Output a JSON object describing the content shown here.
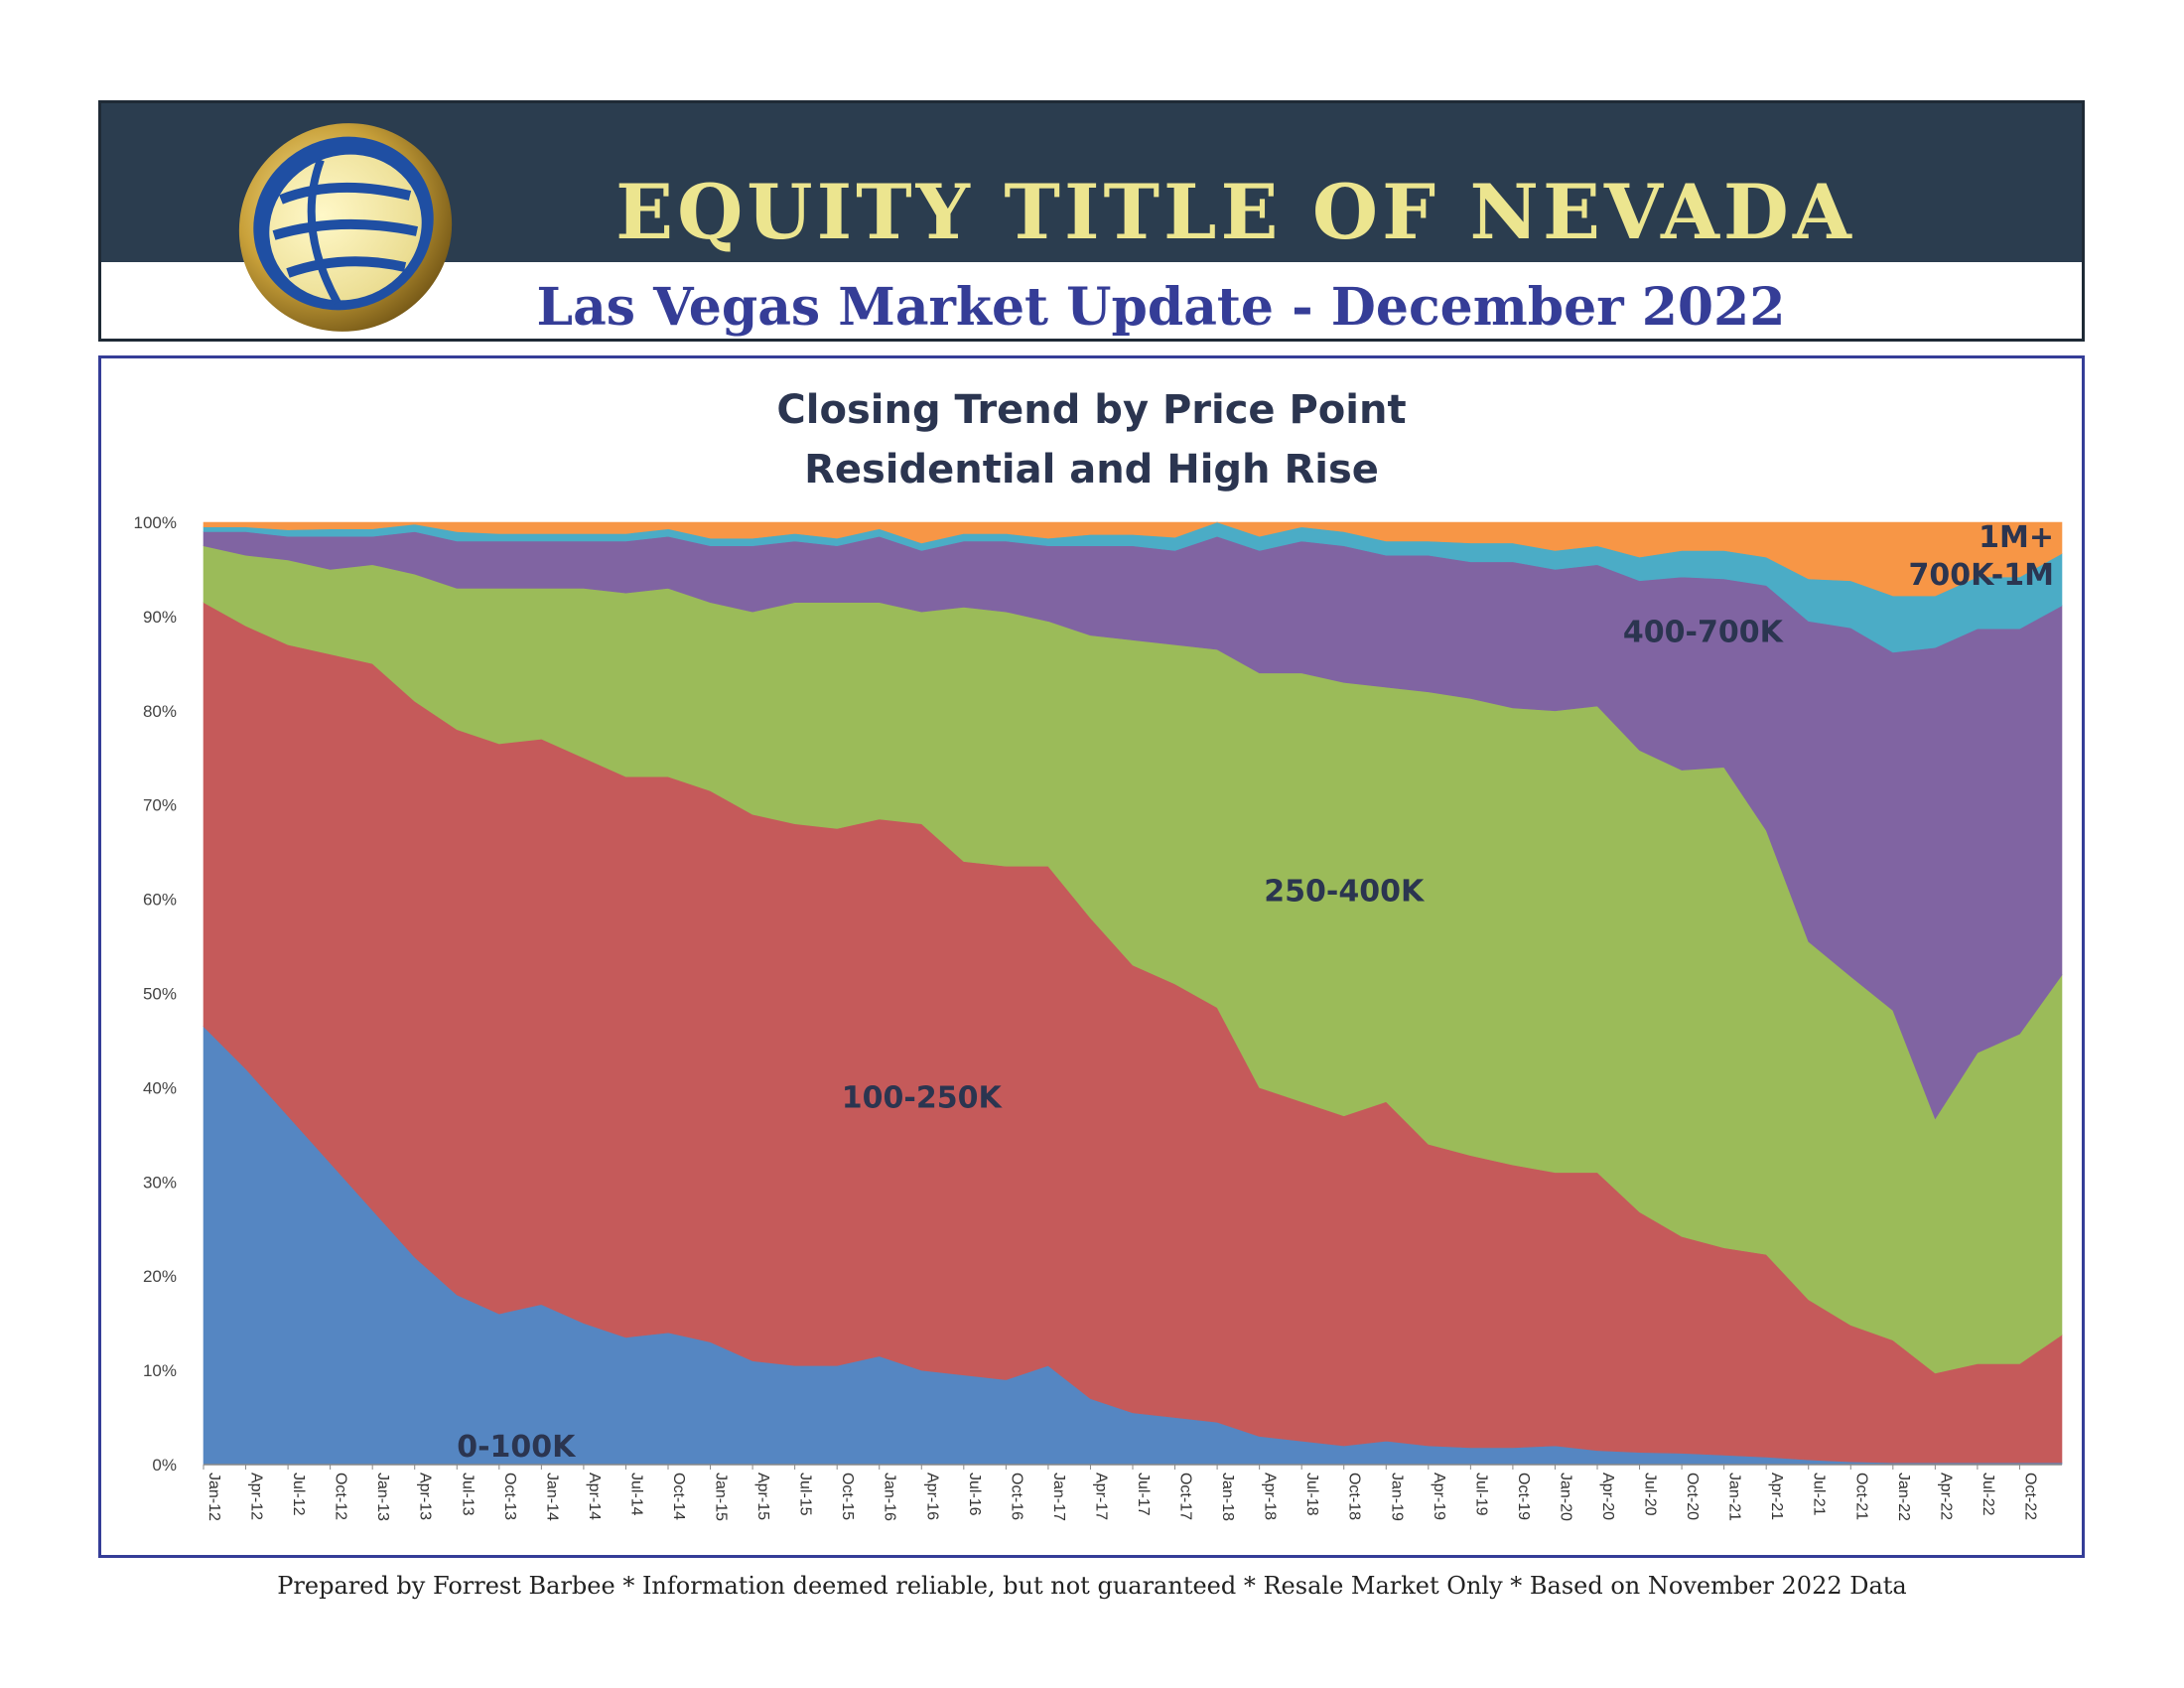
{
  "header": {
    "company_name": "EQUITY TITLE OF NEVADA",
    "report_title": "Las Vegas Market Update - December 2022",
    "logo_icon": "globe-logo-icon"
  },
  "footer": {
    "note": "Prepared by Forrest Barbee * Information deemed reliable, but not guaranteed * Resale Market Only * Based on November 2022 Data"
  },
  "chart_data": {
    "type": "area",
    "stacked": true,
    "percent": true,
    "title": "Closing Trend by Price Point",
    "subtitle": "Residential and High Rise",
    "xlabel": "",
    "ylabel": "",
    "ylim": [
      0,
      100
    ],
    "y_ticks": [
      "0%",
      "10%",
      "20%",
      "30%",
      "40%",
      "50%",
      "60%",
      "70%",
      "80%",
      "90%",
      "100%"
    ],
    "x": [
      "Jan-12",
      "Apr-12",
      "Jul-12",
      "Oct-12",
      "Jan-13",
      "Apr-13",
      "Jul-13",
      "Oct-13",
      "Jan-14",
      "Apr-14",
      "Jul-14",
      "Oct-14",
      "Jan-15",
      "Apr-15",
      "Jul-15",
      "Oct-15",
      "Jan-16",
      "Apr-16",
      "Jul-16",
      "Oct-16",
      "Jan-17",
      "Apr-17",
      "Jul-17",
      "Oct-17",
      "Jan-18",
      "Apr-18",
      "Jul-18",
      "Oct-18",
      "Jan-19",
      "Apr-19",
      "Jul-19",
      "Oct-19",
      "Jan-20",
      "Apr-20",
      "Jul-20",
      "Oct-20",
      "Jan-21",
      "Apr-21",
      "Jul-21",
      "Oct-21",
      "Jan-22",
      "Apr-22",
      "Jul-22",
      "Oct-22",
      "Dec-22"
    ],
    "x_ticks_shown": [
      "Jan-12",
      "Apr-12",
      "Jul-12",
      "Oct-12",
      "Jan-13",
      "Apr-13",
      "Jul-13",
      "Oct-13",
      "Jan-14",
      "Apr-14",
      "Jul-14",
      "Oct-14",
      "Jan-15",
      "Apr-15",
      "Jul-15",
      "Oct-15",
      "Jan-16",
      "Apr-16",
      "Jul-16",
      "Oct-16",
      "Jan-17",
      "Apr-17",
      "Jul-17",
      "Oct-17",
      "Jan-18",
      "Apr-18",
      "Jul-18",
      "Oct-18",
      "Jan-19",
      "Apr-19",
      "Jul-19",
      "Oct-19",
      "Jan-20",
      "Apr-20",
      "Jul-20",
      "Oct-20",
      "Jan-21",
      "Apr-21",
      "Jul-21",
      "Oct-21",
      "Jan-22",
      "Apr-22",
      "Jul-22",
      "Oct-22"
    ],
    "series": [
      {
        "name": "0-100K",
        "color": "#5586c2",
        "values": [
          46.5,
          42,
          37,
          32,
          27,
          22,
          18,
          16,
          17,
          15,
          13.5,
          14,
          13,
          11,
          10.5,
          10.5,
          11.5,
          10,
          9.5,
          9,
          10.5,
          7,
          5.5,
          5,
          4.5,
          3,
          2.5,
          2,
          2.5,
          2,
          1.8,
          1.8,
          2,
          1.5,
          1.3,
          1.2,
          1,
          0.8,
          0.5,
          0.3,
          0.2,
          0.2,
          0.2,
          0.2,
          0.2
        ]
      },
      {
        "name": "100-250K",
        "color": "#c55a5a",
        "values": [
          45,
          47,
          50,
          54,
          58,
          59,
          60,
          60.5,
          60,
          60,
          59.5,
          59,
          58.5,
          58,
          57.5,
          57,
          57,
          58,
          54.5,
          54.5,
          53,
          51,
          47.5,
          46,
          44,
          37,
          36,
          35,
          36,
          32,
          31,
          30,
          29,
          29.5,
          25.5,
          23,
          22,
          21.5,
          17,
          14.5,
          13,
          9.5,
          10.5,
          10.5,
          13.5
        ]
      },
      {
        "name": "250-400K",
        "color": "#9bbb59",
        "values": [
          6,
          7.5,
          9,
          9,
          10.5,
          13.5,
          15,
          16.5,
          16,
          18,
          19.5,
          20,
          20,
          21.5,
          23.5,
          24,
          23,
          22.5,
          27,
          27,
          26,
          30,
          34.5,
          36,
          38,
          44,
          45.5,
          46,
          44,
          48,
          48.5,
          48.5,
          49,
          49.5,
          49,
          49.5,
          51,
          45,
          38,
          37,
          35,
          27,
          33,
          35,
          38
        ]
      },
      {
        "name": "400-700K",
        "color": "#8064a2",
        "values": [
          1.5,
          2.5,
          2.5,
          3.5,
          3,
          4.5,
          5,
          5,
          5,
          5,
          5.5,
          5.5,
          6,
          7,
          6.5,
          6,
          7,
          6.5,
          7,
          7.5,
          8,
          9.5,
          10,
          10,
          12,
          13,
          14,
          14.5,
          14,
          14.5,
          14.5,
          15.5,
          15,
          15,
          18,
          20.5,
          20,
          26,
          34,
          37,
          38,
          50,
          45,
          43,
          39
        ]
      },
      {
        "name": "700K-1M",
        "color": "#4bacc6",
        "values": [
          0.5,
          0.5,
          0.7,
          0.8,
          0.8,
          0.8,
          1,
          0.8,
          0.8,
          0.8,
          0.8,
          0.8,
          0.8,
          0.8,
          0.8,
          0.8,
          0.8,
          0.8,
          0.8,
          0.8,
          0.8,
          1.2,
          1.2,
          1.4,
          1.5,
          1.5,
          1.5,
          1.5,
          1.5,
          1.5,
          2,
          2,
          2,
          2,
          2.5,
          2.8,
          3,
          3,
          4.5,
          5,
          6,
          5.5,
          5.5,
          5.5,
          5.5
        ]
      },
      {
        "name": "1M+",
        "color": "#f79646",
        "values": [
          0.5,
          0.5,
          0.8,
          0.7,
          0.7,
          0.2,
          1,
          1.2,
          1.2,
          1.2,
          1.2,
          0.7,
          1.7,
          1.7,
          1.2,
          1.7,
          0.7,
          2.2,
          1.2,
          1.2,
          1.7,
          1.3,
          1.3,
          1.6,
          0,
          1.5,
          0.5,
          1,
          2,
          2,
          2.2,
          2.2,
          3,
          2.5,
          3.7,
          3,
          3,
          3.7,
          6,
          6.2,
          7.8,
          7.8,
          5.8,
          5.8,
          3.3
        ]
      }
    ],
    "series_labels": [
      {
        "text": "0-100K",
        "series": "0-100K"
      },
      {
        "text": "100-250K",
        "series": "100-250K"
      },
      {
        "text": "250-400K",
        "series": "250-400K"
      },
      {
        "text": "400-700K",
        "series": "400-700K"
      },
      {
        "text": "700K-1M",
        "series": "700K-1M"
      },
      {
        "text": "1M+",
        "series": "1M+"
      }
    ],
    "label_color": "#2b3550",
    "grid": false,
    "legend": "none"
  }
}
